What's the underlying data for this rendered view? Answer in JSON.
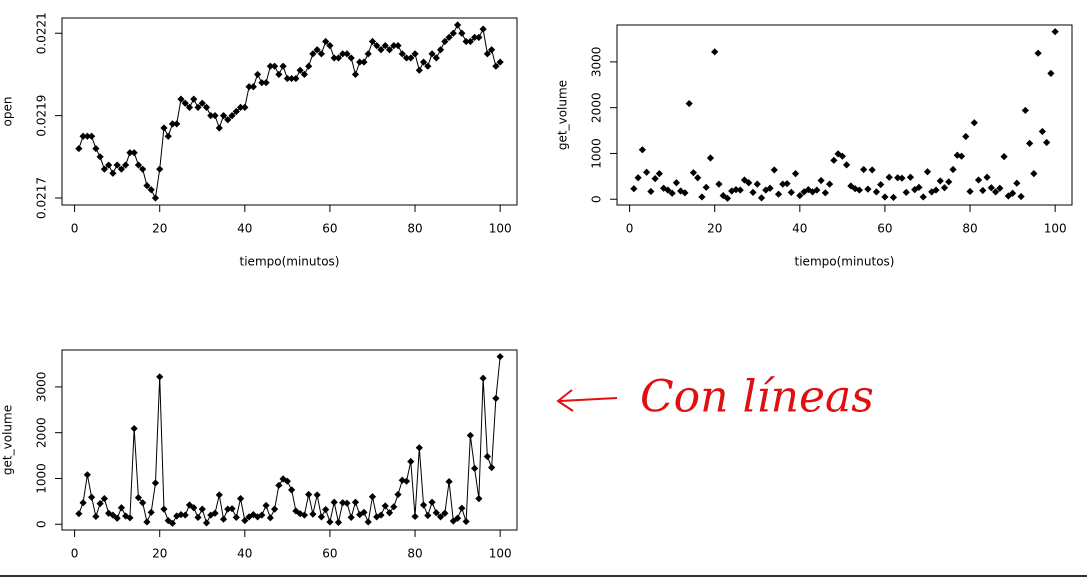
{
  "chart_data": [
    {
      "type": "line",
      "x_label": "tiempo(minutos)",
      "y_label": "open",
      "color": "#000000",
      "x": [
        1,
        2,
        3,
        4,
        5,
        6,
        7,
        8,
        9,
        10,
        11,
        12,
        13,
        14,
        15,
        16,
        17,
        18,
        19,
        20,
        21,
        22,
        23,
        24,
        25,
        26,
        27,
        28,
        29,
        30,
        31,
        32,
        33,
        34,
        35,
        36,
        37,
        38,
        39,
        40,
        41,
        42,
        43,
        44,
        45,
        46,
        47,
        48,
        49,
        50,
        51,
        52,
        53,
        54,
        55,
        56,
        57,
        58,
        59,
        60,
        61,
        62,
        63,
        64,
        65,
        66,
        67,
        68,
        69,
        70,
        71,
        72,
        73,
        74,
        75,
        76,
        77,
        78,
        79,
        80,
        81,
        82,
        83,
        84,
        85,
        86,
        87,
        88,
        89,
        90,
        91,
        92,
        93,
        94,
        95,
        96,
        97,
        98,
        99,
        100
      ],
      "values": [
        0.02182,
        0.02185,
        0.02185,
        0.02185,
        0.02182,
        0.0218,
        0.02177,
        0.02178,
        0.02176,
        0.02178,
        0.02177,
        0.02178,
        0.02181,
        0.02181,
        0.02178,
        0.02177,
        0.02173,
        0.02172,
        0.0217,
        0.02177,
        0.02187,
        0.02185,
        0.02188,
        0.02188,
        0.02194,
        0.02193,
        0.02192,
        0.02194,
        0.02192,
        0.02193,
        0.02192,
        0.0219,
        0.0219,
        0.02187,
        0.0219,
        0.02189,
        0.0219,
        0.02191,
        0.02192,
        0.02192,
        0.02197,
        0.02197,
        0.022,
        0.02198,
        0.02198,
        0.02202,
        0.02202,
        0.022,
        0.02202,
        0.02199,
        0.02199,
        0.02199,
        0.02201,
        0.022,
        0.02202,
        0.02205,
        0.02206,
        0.02205,
        0.02208,
        0.02207,
        0.02204,
        0.02204,
        0.02205,
        0.02205,
        0.02204,
        0.022,
        0.02203,
        0.02203,
        0.02205,
        0.02208,
        0.02207,
        0.02206,
        0.02207,
        0.02206,
        0.02207,
        0.02207,
        0.02205,
        0.02204,
        0.02204,
        0.02205,
        0.02201,
        0.02203,
        0.02202,
        0.02205,
        0.02204,
        0.02206,
        0.02208,
        0.02209,
        0.0221,
        0.02212,
        0.0221,
        0.02208,
        0.02208,
        0.02209,
        0.02209,
        0.02211,
        0.02205,
        0.02206,
        0.02202,
        0.02203
      ],
      "xlim": [
        -2.96,
        103.96
      ],
      "xticks": [
        0,
        20,
        40,
        60,
        80,
        100
      ],
      "ylim": [
        0.021683,
        0.022137
      ],
      "yticks": [
        0.0217,
        0.0219,
        0.0221
      ]
    },
    {
      "type": "scatter",
      "x_label": "tiempo(minutos)",
      "y_label": "get_volume",
      "color": "#000000",
      "x": [
        1,
        2,
        3,
        4,
        5,
        6,
        7,
        8,
        9,
        10,
        11,
        12,
        13,
        14,
        15,
        16,
        17,
        18,
        19,
        20,
        21,
        22,
        23,
        24,
        25,
        26,
        27,
        28,
        29,
        30,
        31,
        32,
        33,
        34,
        35,
        36,
        37,
        38,
        39,
        40,
        41,
        42,
        43,
        44,
        45,
        46,
        47,
        48,
        49,
        50,
        51,
        52,
        53,
        54,
        55,
        56,
        57,
        58,
        59,
        60,
        61,
        62,
        63,
        64,
        65,
        66,
        67,
        68,
        69,
        70,
        71,
        72,
        73,
        74,
        75,
        76,
        77,
        78,
        79,
        80,
        81,
        82,
        83,
        84,
        85,
        86,
        87,
        88,
        89,
        90,
        91,
        92,
        93,
        94,
        95,
        96,
        97,
        98,
        99,
        100
      ],
      "values": [
        230,
        470,
        1080,
        590,
        170,
        450,
        560,
        240,
        200,
        130,
        360,
        180,
        140,
        2090,
        580,
        470,
        50,
        260,
        900,
        3220,
        330,
        80,
        20,
        180,
        210,
        200,
        420,
        360,
        150,
        330,
        30,
        200,
        240,
        640,
        110,
        330,
        340,
        150,
        560,
        80,
        160,
        210,
        160,
        200,
        410,
        140,
        330,
        850,
        990,
        940,
        750,
        290,
        230,
        200,
        650,
        220,
        640,
        160,
        320,
        50,
        480,
        40,
        470,
        460,
        150,
        480,
        210,
        260,
        50,
        600,
        160,
        200,
        400,
        250,
        380,
        650,
        960,
        940,
        1370,
        170,
        1670,
        420,
        190,
        480,
        250,
        160,
        240,
        930,
        70,
        130,
        350,
        60,
        1940,
        1220,
        560,
        3190,
        1480,
        1240,
        2750,
        3660
      ],
      "xlim": [
        -2.96,
        103.96
      ],
      "xticks": [
        0,
        20,
        40,
        60,
        80,
        100
      ],
      "ylim": [
        -126,
        3806
      ],
      "yticks": [
        0,
        1000,
        2000,
        3000
      ]
    },
    {
      "type": "line",
      "y_label": "get_volume",
      "color": "#000000",
      "x": [
        1,
        2,
        3,
        4,
        5,
        6,
        7,
        8,
        9,
        10,
        11,
        12,
        13,
        14,
        15,
        16,
        17,
        18,
        19,
        20,
        21,
        22,
        23,
        24,
        25,
        26,
        27,
        28,
        29,
        30,
        31,
        32,
        33,
        34,
        35,
        36,
        37,
        38,
        39,
        40,
        41,
        42,
        43,
        44,
        45,
        46,
        47,
        48,
        49,
        50,
        51,
        52,
        53,
        54,
        55,
        56,
        57,
        58,
        59,
        60,
        61,
        62,
        63,
        64,
        65,
        66,
        67,
        68,
        69,
        70,
        71,
        72,
        73,
        74,
        75,
        76,
        77,
        78,
        79,
        80,
        81,
        82,
        83,
        84,
        85,
        86,
        87,
        88,
        89,
        90,
        91,
        92,
        93,
        94,
        95,
        96,
        97,
        98,
        99,
        100
      ],
      "values": [
        230,
        470,
        1080,
        590,
        170,
        450,
        560,
        240,
        200,
        130,
        360,
        180,
        140,
        2090,
        580,
        470,
        50,
        260,
        900,
        3220,
        330,
        80,
        20,
        180,
        210,
        200,
        420,
        360,
        150,
        330,
        30,
        200,
        240,
        640,
        110,
        330,
        340,
        150,
        560,
        80,
        160,
        210,
        160,
        200,
        410,
        140,
        330,
        850,
        990,
        940,
        750,
        290,
        230,
        200,
        650,
        220,
        640,
        160,
        320,
        50,
        480,
        40,
        470,
        460,
        150,
        480,
        210,
        260,
        50,
        600,
        160,
        200,
        400,
        250,
        380,
        650,
        960,
        940,
        1370,
        170,
        1670,
        420,
        190,
        480,
        250,
        160,
        240,
        930,
        70,
        130,
        350,
        60,
        1940,
        1220,
        560,
        3190,
        1480,
        1240,
        2750,
        3660
      ],
      "xlim": [
        -2.96,
        103.96
      ],
      "xticks": [
        0,
        20,
        40,
        60,
        80,
        100
      ],
      "ylim": [
        -126,
        3806
      ],
      "yticks": [
        0,
        1000,
        2000,
        3000
      ]
    }
  ],
  "annotation": "Con líneas"
}
